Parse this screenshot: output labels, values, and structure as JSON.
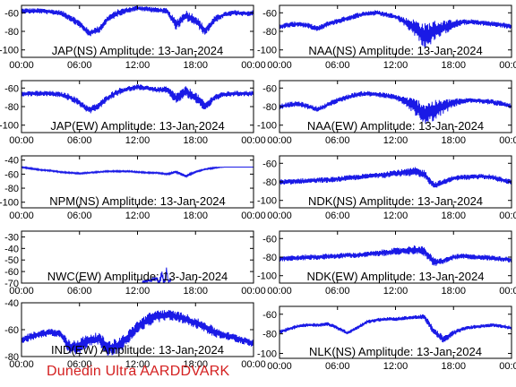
{
  "colors": {
    "trace": "#1a1ae6",
    "footer": "#d42020",
    "axis": "#000000"
  },
  "footer_text": "Dunedin Ultra AARDDVARK",
  "chart_data": [
    {
      "type": "line",
      "title": "JAP(NS) Amplitude: 13-Jan-2024",
      "x_ticks": [
        "00:00",
        "06:00",
        "12:00",
        "18:00",
        "00:00"
      ],
      "y_ticks": [
        -60,
        -80,
        -100
      ],
      "ylim": [
        -108,
        -52
      ],
      "x_hours": [
        0,
        1,
        2,
        3,
        4,
        5,
        6,
        7,
        8,
        9,
        10,
        11,
        12,
        13,
        14,
        15,
        16,
        17,
        18,
        19,
        20,
        21,
        22,
        23,
        24
      ],
      "y": [
        -58,
        -58,
        -58,
        -59,
        -60,
        -65,
        -72,
        -82,
        -78,
        -66,
        -60,
        -57,
        -55,
        -56,
        -57,
        -58,
        -73,
        -63,
        -68,
        -80,
        -67,
        -62,
        -60,
        -61,
        -60
      ],
      "noise": [
        3,
        3,
        3,
        3,
        3,
        4,
        4,
        4,
        4,
        4,
        4,
        3,
        3,
        3,
        3,
        3,
        6,
        6,
        6,
        5,
        4,
        3,
        3,
        3,
        3
      ]
    },
    {
      "type": "line",
      "title": "NAA(NS) Amplitude: 13-Jan-2024",
      "x_ticks": [
        "00:00",
        "06:00",
        "12:00",
        "18:00",
        "00:00"
      ],
      "y_ticks": [
        -60,
        -80,
        -100
      ],
      "ylim": [
        -108,
        -52
      ],
      "x_hours": [
        0,
        1,
        2,
        3,
        4,
        5,
        6,
        7,
        8,
        9,
        10,
        11,
        12,
        13,
        14,
        15,
        16,
        17,
        18,
        19,
        20,
        21,
        22,
        23,
        24
      ],
      "y": [
        -75,
        -73,
        -72,
        -74,
        -77,
        -72,
        -69,
        -66,
        -63,
        -61,
        -60,
        -62,
        -64,
        -70,
        -76,
        -85,
        -80,
        -76,
        -72,
        -70,
        -70,
        -71,
        -72,
        -73,
        -75
      ],
      "noise": [
        3,
        3,
        3,
        3,
        3,
        3,
        3,
        3,
        3,
        3,
        3,
        3,
        3,
        5,
        9,
        14,
        12,
        8,
        5,
        3,
        3,
        3,
        3,
        3,
        3
      ]
    },
    {
      "type": "line",
      "title": "JAP(EW) Amplitude: 13-Jan-2024",
      "x_ticks": [
        "00:00",
        "06:00",
        "12:00",
        "18:00",
        "00:00"
      ],
      "y_ticks": [
        -60,
        -80,
        -100
      ],
      "ylim": [
        -108,
        -52
      ],
      "x_hours": [
        0,
        1,
        2,
        3,
        4,
        5,
        6,
        7,
        8,
        9,
        10,
        11,
        12,
        13,
        14,
        15,
        16,
        17,
        18,
        19,
        20,
        21,
        22,
        23,
        24
      ],
      "y": [
        -66,
        -66,
        -66,
        -66,
        -67,
        -70,
        -76,
        -84,
        -79,
        -70,
        -64,
        -61,
        -59,
        -60,
        -62,
        -62,
        -71,
        -64,
        -70,
        -80,
        -70,
        -67,
        -66,
        -66,
        -66
      ],
      "noise": [
        3,
        3,
        3,
        3,
        3,
        4,
        4,
        4,
        4,
        4,
        4,
        3,
        3,
        3,
        3,
        4,
        6,
        6,
        6,
        5,
        4,
        3,
        3,
        3,
        3
      ]
    },
    {
      "type": "line",
      "title": "NAA(EW) Amplitude: 13-Jan-2024",
      "x_ticks": [
        "00:00",
        "06:00",
        "12:00",
        "18:00",
        "00:00"
      ],
      "y_ticks": [
        -60,
        -80,
        -100
      ],
      "ylim": [
        -108,
        -52
      ],
      "x_hours": [
        0,
        1,
        2,
        3,
        4,
        5,
        6,
        7,
        8,
        9,
        10,
        11,
        12,
        13,
        14,
        15,
        16,
        17,
        18,
        19,
        20,
        21,
        22,
        23,
        24
      ],
      "y": [
        -80,
        -78,
        -77,
        -80,
        -83,
        -78,
        -73,
        -70,
        -67,
        -66,
        -67,
        -68,
        -70,
        -74,
        -80,
        -88,
        -84,
        -80,
        -76,
        -74,
        -73,
        -74,
        -75,
        -77,
        -80
      ],
      "noise": [
        3,
        3,
        3,
        3,
        3,
        3,
        3,
        3,
        3,
        3,
        3,
        3,
        3,
        5,
        9,
        13,
        11,
        8,
        5,
        3,
        3,
        3,
        3,
        3,
        3
      ]
    },
    {
      "type": "line",
      "title": "NPM(NS) Amplitude: 13-Jan-2024",
      "x_ticks": [
        "00:00",
        "06:00",
        "12:00",
        "18:00",
        "00:00"
      ],
      "y_ticks": [
        -40,
        -60,
        -80,
        -100
      ],
      "ylim": [
        -108,
        -34
      ],
      "x_hours": [
        0,
        1,
        2,
        3,
        4,
        5,
        6,
        7,
        8,
        9,
        10,
        11,
        12,
        13,
        14,
        15,
        16,
        17,
        18,
        19,
        20,
        21,
        22,
        23,
        24
      ],
      "y": [
        -50,
        -52,
        -54,
        -55,
        -57,
        -58,
        -59,
        -58,
        -57,
        -56,
        -56,
        -56,
        -57,
        -58,
        -58,
        -60,
        -57,
        -63,
        -57,
        -53,
        -51,
        -50,
        -50,
        -50,
        -50
      ],
      "noise": [
        1,
        1,
        1,
        1,
        1,
        1,
        1,
        1,
        1,
        1,
        1,
        1,
        1,
        1,
        1,
        1,
        2,
        2,
        1,
        1,
        1,
        0,
        0,
        0,
        0
      ]
    },
    {
      "type": "line",
      "title": "NDK(NS) Amplitude: 13-Jan-2024",
      "x_ticks": [
        "00:00",
        "06:00",
        "12:00",
        "18:00",
        "00:00"
      ],
      "y_ticks": [
        -60,
        -80,
        -100
      ],
      "ylim": [
        -108,
        -52
      ],
      "x_hours": [
        0,
        1,
        2,
        3,
        4,
        5,
        6,
        7,
        8,
        9,
        10,
        11,
        12,
        13,
        14,
        15,
        16,
        17,
        18,
        19,
        20,
        21,
        22,
        23,
        24
      ],
      "y": [
        -80,
        -80,
        -79,
        -79,
        -78,
        -78,
        -77,
        -76,
        -75,
        -74,
        -73,
        -72,
        -71,
        -70,
        -69,
        -72,
        -84,
        -80,
        -76,
        -75,
        -75,
        -74,
        -75,
        -78,
        -80
      ],
      "noise": [
        3,
        3,
        3,
        3,
        3,
        3,
        3,
        3,
        3,
        3,
        3,
        4,
        4,
        4,
        5,
        5,
        4,
        3,
        3,
        3,
        3,
        3,
        3,
        3,
        3
      ]
    },
    {
      "type": "line",
      "title": "NWC(EW) Amplitude: 13-Jan-2024",
      "x_ticks": [
        "00:00",
        "06:00",
        "12:00",
        "18:00",
        "00:00"
      ],
      "y_ticks": [
        -30,
        -40,
        -50,
        -60,
        -70
      ],
      "ylim": [
        -70,
        -25
      ],
      "x_hours": [
        12.5,
        13,
        13.5,
        14,
        14.2,
        14.5,
        14.8,
        15,
        15.2,
        15.5
      ],
      "y": [
        -69,
        -68,
        -67,
        -66,
        -70,
        -62,
        -70,
        -58,
        -69,
        -67
      ],
      "noise": [
        1,
        1,
        2,
        2,
        3,
        4,
        3,
        4,
        2,
        1
      ]
    },
    {
      "type": "line",
      "title": "NDK(EW) Amplitude: 13-Jan-2024",
      "x_ticks": [
        "00:00",
        "06:00",
        "12:00",
        "18:00",
        "00:00"
      ],
      "y_ticks": [
        -60,
        -80,
        -100
      ],
      "ylim": [
        -108,
        -52
      ],
      "x_hours": [
        0,
        1,
        2,
        3,
        4,
        5,
        6,
        7,
        8,
        9,
        10,
        11,
        12,
        13,
        14,
        15,
        16,
        17,
        18,
        19,
        20,
        21,
        22,
        23,
        24
      ],
      "y": [
        -82,
        -81,
        -81,
        -80,
        -80,
        -79,
        -79,
        -78,
        -78,
        -77,
        -76,
        -75,
        -74,
        -73,
        -72,
        -74,
        -86,
        -84,
        -80,
        -79,
        -80,
        -80,
        -81,
        -82,
        -83
      ],
      "noise": [
        3,
        3,
        3,
        3,
        3,
        3,
        3,
        3,
        3,
        3,
        3,
        4,
        4,
        4,
        5,
        5,
        5,
        3,
        3,
        3,
        3,
        3,
        3,
        3,
        3
      ]
    },
    {
      "type": "line",
      "title": "IND(EW) Amplitude: 13-Jan-2024",
      "x_ticks": [
        "00:00",
        "06:00",
        "12:00",
        "18:00",
        "00:00"
      ],
      "y_ticks": [
        -40,
        -60,
        -80
      ],
      "ylim": [
        -80,
        -40
      ],
      "x_hours": [
        0,
        1,
        2,
        3,
        4,
        5,
        6,
        7,
        8,
        9,
        10,
        11,
        12,
        13,
        14,
        15,
        16,
        17,
        18,
        19,
        20,
        21,
        22,
        23,
        24
      ],
      "y": [
        -68,
        -65,
        -63,
        -62,
        -63,
        -74,
        -72,
        -68,
        -67,
        -74,
        -72,
        -66,
        -58,
        -53,
        -50,
        -49,
        -50,
        -52,
        -55,
        -58,
        -62,
        -64,
        -66,
        -68,
        -70
      ],
      "noise": [
        3,
        3,
        3,
        3,
        3,
        6,
        6,
        5,
        5,
        6,
        6,
        5,
        5,
        5,
        5,
        4,
        4,
        4,
        4,
        4,
        4,
        3,
        3,
        3,
        3
      ]
    },
    {
      "type": "line",
      "title": "NLK(NS) Amplitude: 13-Jan-2024",
      "x_ticks": [
        "00:00",
        "06:00",
        "12:00",
        "18:00",
        "00:00"
      ],
      "y_ticks": [
        -60,
        -80,
        -100
      ],
      "ylim": [
        -105,
        -52
      ],
      "x_hours": [
        0,
        1,
        2,
        3,
        4,
        5,
        6,
        7,
        8,
        9,
        10,
        11,
        12,
        13,
        14,
        15,
        16,
        17,
        18,
        19,
        20,
        21,
        22,
        23,
        24
      ],
      "y": [
        -78,
        -75,
        -72,
        -71,
        -71,
        -70,
        -74,
        -79,
        -74,
        -68,
        -66,
        -65,
        -65,
        -64,
        -63,
        -63,
        -78,
        -86,
        -79,
        -75,
        -73,
        -72,
        -71,
        -72,
        -74
      ],
      "noise": [
        2,
        2,
        2,
        2,
        2,
        2,
        2,
        2,
        2,
        2,
        2,
        2,
        2,
        2,
        2,
        3,
        4,
        4,
        3,
        2,
        2,
        2,
        2,
        2,
        2
      ]
    }
  ]
}
